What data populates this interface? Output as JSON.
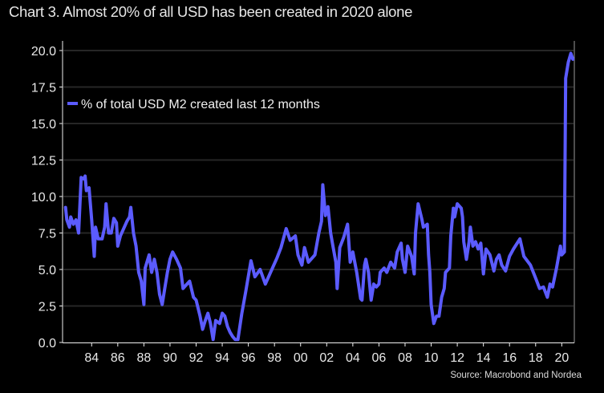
{
  "chart_data": {
    "type": "line",
    "title": "Chart 3. Almost 20% of all USD has been created in 2020 alone",
    "source": "Source: Macrobond and Nordea",
    "xlabel": "",
    "ylabel": "",
    "xlim": [
      1981.8,
      2021.0
    ],
    "ylim": [
      0,
      20
    ],
    "grid": true,
    "legend_position": "top-left",
    "y_ticks": [
      "0.0",
      "2.5",
      "5.0",
      "7.5",
      "10.0",
      "12.5",
      "15.0",
      "17.5",
      "20.0"
    ],
    "x_ticks": [
      {
        "year": 1984,
        "label": "84"
      },
      {
        "year": 1986,
        "label": "86"
      },
      {
        "year": 1988,
        "label": "88"
      },
      {
        "year": 1990,
        "label": "90"
      },
      {
        "year": 1992,
        "label": "92"
      },
      {
        "year": 1994,
        "label": "94"
      },
      {
        "year": 1996,
        "label": "96"
      },
      {
        "year": 1998,
        "label": "98"
      },
      {
        "year": 2000,
        "label": "00"
      },
      {
        "year": 2002,
        "label": "02"
      },
      {
        "year": 2004,
        "label": "04"
      },
      {
        "year": 2006,
        "label": "06"
      },
      {
        "year": 2008,
        "label": "08"
      },
      {
        "year": 2010,
        "label": "10"
      },
      {
        "year": 2012,
        "label": "12"
      },
      {
        "year": 2014,
        "label": "14"
      },
      {
        "year": 2016,
        "label": "16"
      },
      {
        "year": 2018,
        "label": "18"
      },
      {
        "year": 2020,
        "label": "20"
      }
    ],
    "series": [
      {
        "name": "% of total USD M2 created last 12 months",
        "color": "#5b5bff",
        "x": [
          1982.0,
          1982.1,
          1982.3,
          1982.4,
          1982.6,
          1982.8,
          1983.0,
          1983.2,
          1983.4,
          1983.5,
          1983.6,
          1983.8,
          1984.0,
          1984.2,
          1984.3,
          1984.5,
          1984.8,
          1985.0,
          1985.1,
          1985.3,
          1985.5,
          1985.7,
          1985.9,
          1986.0,
          1986.2,
          1986.4,
          1986.7,
          1986.9,
          1987.0,
          1987.2,
          1987.4,
          1987.6,
          1987.8,
          1988.0,
          1988.1,
          1988.4,
          1988.6,
          1988.8,
          1989.0,
          1989.2,
          1989.4,
          1989.6,
          1989.8,
          1990.0,
          1990.2,
          1990.5,
          1990.8,
          1991.0,
          1991.3,
          1991.5,
          1991.8,
          1992.0,
          1992.3,
          1992.5,
          1992.7,
          1992.9,
          1993.1,
          1993.3,
          1993.5,
          1993.8,
          1994.0,
          1994.2,
          1994.4,
          1994.6,
          1994.8,
          1995.0,
          1995.2,
          1995.5,
          1995.8,
          1996.2,
          1996.5,
          1996.9,
          1997.3,
          1997.7,
          1998.2,
          1998.5,
          1998.9,
          1999.2,
          1999.6,
          1999.8,
          2000.1,
          2000.3,
          2000.6,
          2001.1,
          2001.4,
          2001.6,
          2001.7,
          2001.9,
          2002.1,
          2002.3,
          2002.5,
          2002.7,
          2002.8,
          2003.0,
          2003.3,
          2003.6,
          2003.8,
          2004.0,
          2004.3,
          2004.6,
          2004.7,
          2004.9,
          2005.0,
          2005.2,
          2005.4,
          2005.6,
          2005.8,
          2006.0,
          2006.1,
          2006.4,
          2006.6,
          2006.9,
          2007.2,
          2007.4,
          2007.7,
          2007.8,
          2008.0,
          2008.2,
          2008.5,
          2008.7,
          2008.8,
          2009.0,
          2009.3,
          2009.4,
          2009.7,
          2009.8,
          2009.9,
          2010.0,
          2010.2,
          2010.4,
          2010.6,
          2010.8,
          2011.0,
          2011.1,
          2011.4,
          2011.5,
          2011.7,
          2011.8,
          2012.0,
          2012.3,
          2012.4,
          2012.5,
          2012.7,
          2012.9,
          2013.0,
          2013.2,
          2013.4,
          2013.6,
          2013.8,
          2014.0,
          2014.2,
          2014.5,
          2014.8,
          2015.0,
          2015.2,
          2015.4,
          2015.7,
          2016.0,
          2016.3,
          2016.8,
          2017.1,
          2017.6,
          2018.0,
          2018.3,
          2018.6,
          2018.9,
          2019.1,
          2019.3,
          2019.6,
          2019.9,
          2020.0,
          2020.2,
          2020.3,
          2020.5,
          2020.7,
          2020.85
        ],
        "y": [
          9.25,
          8.4,
          7.9,
          8.6,
          8.1,
          8.4,
          7.5,
          11.3,
          11.2,
          11.4,
          10.4,
          10.6,
          8.4,
          5.9,
          7.9,
          7.1,
          7.1,
          7.9,
          9.5,
          7.5,
          7.5,
          8.5,
          8.2,
          6.6,
          7.3,
          7.7,
          8.3,
          8.6,
          9.25,
          7.5,
          6.6,
          4.8,
          4.2,
          2.6,
          5.1,
          6.0,
          4.8,
          5.7,
          4.8,
          3.3,
          2.6,
          3.7,
          4.8,
          5.7,
          6.2,
          5.7,
          5.1,
          3.7,
          4.0,
          4.2,
          3.1,
          2.9,
          1.8,
          0.9,
          1.5,
          2.0,
          1.3,
          0.2,
          1.5,
          1.3,
          2.0,
          1.8,
          1.1,
          0.7,
          0.4,
          0.2,
          0.2,
          2.0,
          3.5,
          5.6,
          4.5,
          5.0,
          4.0,
          4.8,
          5.8,
          6.5,
          7.8,
          7.0,
          7.3,
          6.0,
          5.3,
          6.5,
          5.5,
          6.0,
          7.5,
          8.3,
          10.8,
          8.7,
          9.3,
          7.5,
          6.5,
          5.5,
          3.7,
          6.5,
          7.2,
          8.1,
          5.5,
          6.2,
          4.8,
          3.0,
          2.9,
          5.3,
          5.7,
          4.8,
          2.9,
          4.0,
          3.8,
          4.0,
          4.8,
          5.1,
          4.8,
          5.5,
          5.1,
          6.2,
          6.8,
          5.7,
          4.8,
          6.6,
          5.9,
          4.7,
          7.5,
          9.5,
          8.4,
          7.9,
          8.1,
          6.0,
          4.8,
          2.6,
          1.3,
          1.8,
          1.8,
          3.1,
          3.7,
          4.8,
          5.1,
          7.3,
          9.2,
          8.6,
          9.5,
          9.2,
          8.6,
          6.9,
          5.7,
          6.9,
          7.9,
          6.6,
          6.9,
          6.4,
          6.8,
          4.7,
          6.4,
          6.0,
          4.9,
          5.7,
          6.0,
          5.3,
          4.9,
          5.9,
          6.4,
          7.1,
          5.9,
          5.3,
          4.4,
          3.7,
          3.8,
          3.1,
          4.0,
          3.8,
          5.1,
          6.6,
          6.0,
          6.2,
          18.1,
          19.2,
          19.8,
          19.4
        ]
      }
    ]
  }
}
